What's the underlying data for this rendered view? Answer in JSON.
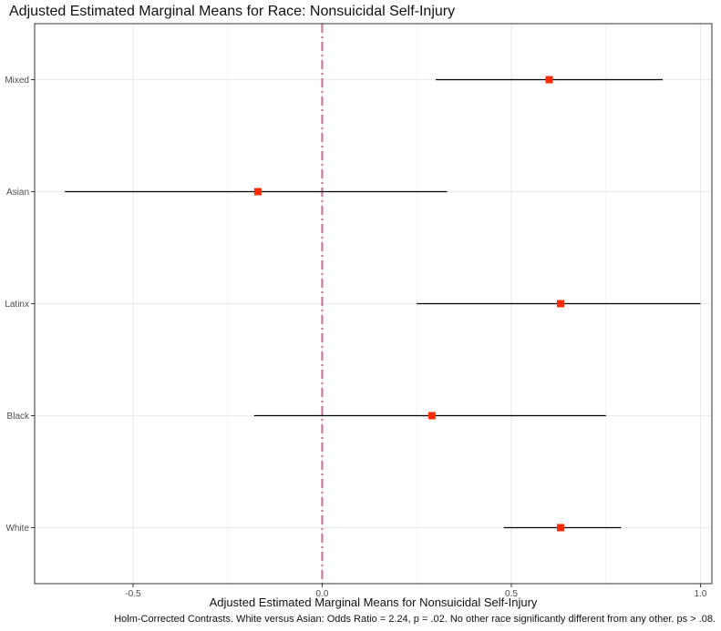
{
  "title": "Adjusted Estimated Marginal Means for Race: Nonsuicidal Self-Injury",
  "caption": "Holm-Corrected Contrasts. White versus Asian: Odds Ratio = 2.24, p = .02. No other race significantly different from any other. ps > .08.",
  "chart_data": {
    "type": "scatter",
    "title": "Adjusted Estimated Marginal Means for Race: Nonsuicidal Self-Injury",
    "xlabel": "Adjusted Estimated Marginal Means for Nonsuicidal Self-Injury",
    "ylabel": "",
    "categories": [
      "Mixed",
      "Asian",
      "Latinx",
      "Black",
      "White"
    ],
    "xlim": [
      -0.76,
      1.03
    ],
    "x_ticks": [
      -0.5,
      0.0,
      0.5,
      1.0
    ],
    "x_tick_labels": [
      "-0.5",
      "0.0",
      "0.5",
      "1.0"
    ],
    "points": [
      {
        "category": "Mixed",
        "estimate": 0.6,
        "lower": 0.3,
        "upper": 0.9
      },
      {
        "category": "Asian",
        "estimate": -0.17,
        "lower": -0.68,
        "upper": 0.33
      },
      {
        "category": "Latinx",
        "estimate": 0.63,
        "lower": 0.25,
        "upper": 1.0
      },
      {
        "category": "Black",
        "estimate": 0.29,
        "lower": -0.18,
        "upper": 0.75
      },
      {
        "category": "White",
        "estimate": 0.63,
        "lower": 0.48,
        "upper": 0.79
      }
    ],
    "reference_line": {
      "x": 0.0,
      "style": "dot-dash"
    },
    "grid": true,
    "legend": "none",
    "colors": {
      "point": "#ff2a00",
      "errorbar": "#000000",
      "reference_line": "#cc7a9e",
      "grid": "#ebebeb",
      "panel_border": "#333333"
    }
  }
}
